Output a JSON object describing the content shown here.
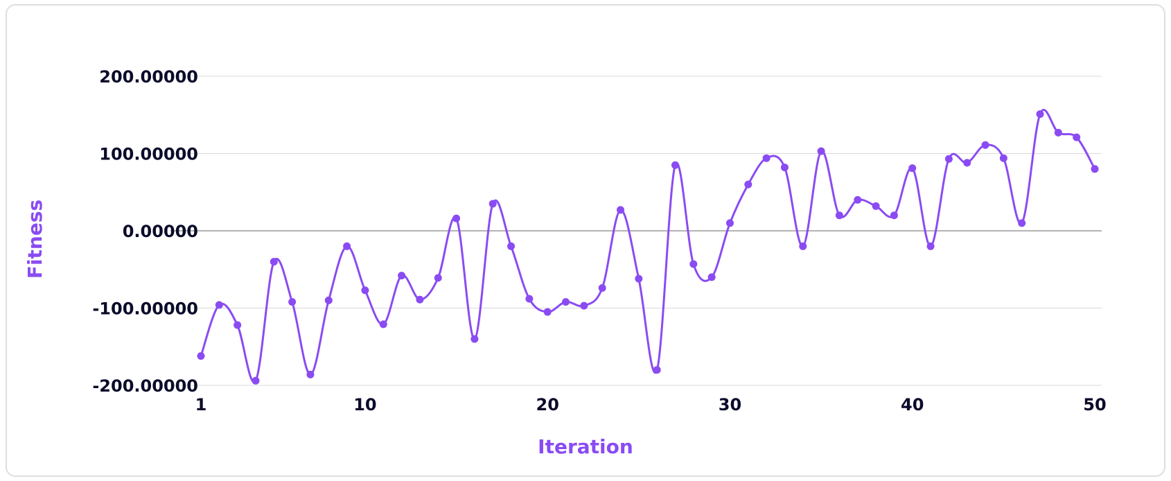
{
  "chart_data": {
    "type": "line",
    "title": "",
    "xlabel": "Iteration",
    "ylabel": "Fitness",
    "xlim": [
      1,
      50
    ],
    "ylim": [
      -200,
      200
    ],
    "x_ticks": [
      1,
      10,
      20,
      30,
      40,
      50
    ],
    "x_tick_labels": [
      "1",
      "10",
      "20",
      "30",
      "40",
      "50"
    ],
    "y_ticks": [
      200,
      100,
      0,
      -100,
      -200
    ],
    "y_tick_labels": [
      "200.00000",
      "100.00000",
      "0.00000",
      "-100.00000",
      "-200.00000"
    ],
    "grid": true,
    "smooth": true,
    "colors": {
      "line": "#8a4bf2",
      "point": "#8a4bf2",
      "axis_title": "#8a4bf2",
      "grid": "#d9d9d9",
      "zero_line": "#9a9a9a"
    },
    "series": [
      {
        "x": [
          1,
          2,
          3,
          4,
          5,
          6,
          7,
          8,
          9,
          10,
          11,
          12,
          13,
          14,
          15,
          16,
          17,
          18,
          19,
          20,
          21,
          22,
          23,
          24,
          25,
          26,
          27,
          28,
          29,
          30,
          31,
          32,
          33,
          34,
          35,
          36,
          37,
          38,
          39,
          40,
          41,
          42,
          43,
          44,
          45,
          46,
          47,
          48,
          49,
          50
        ],
        "values": [
          -162,
          -96,
          -122,
          -194,
          -40,
          -92,
          -186,
          -90,
          -20,
          -77,
          -121,
          -58,
          -89,
          -61,
          16,
          -140,
          35,
          -20,
          -88,
          -105,
          -92,
          -97,
          -74,
          27,
          -62,
          -180,
          85,
          -43,
          -60,
          10,
          60,
          94,
          82,
          -20,
          103,
          20,
          40,
          32,
          20,
          81,
          -20,
          93,
          88,
          111,
          94,
          10,
          151,
          127,
          121,
          80
        ]
      }
    ]
  }
}
